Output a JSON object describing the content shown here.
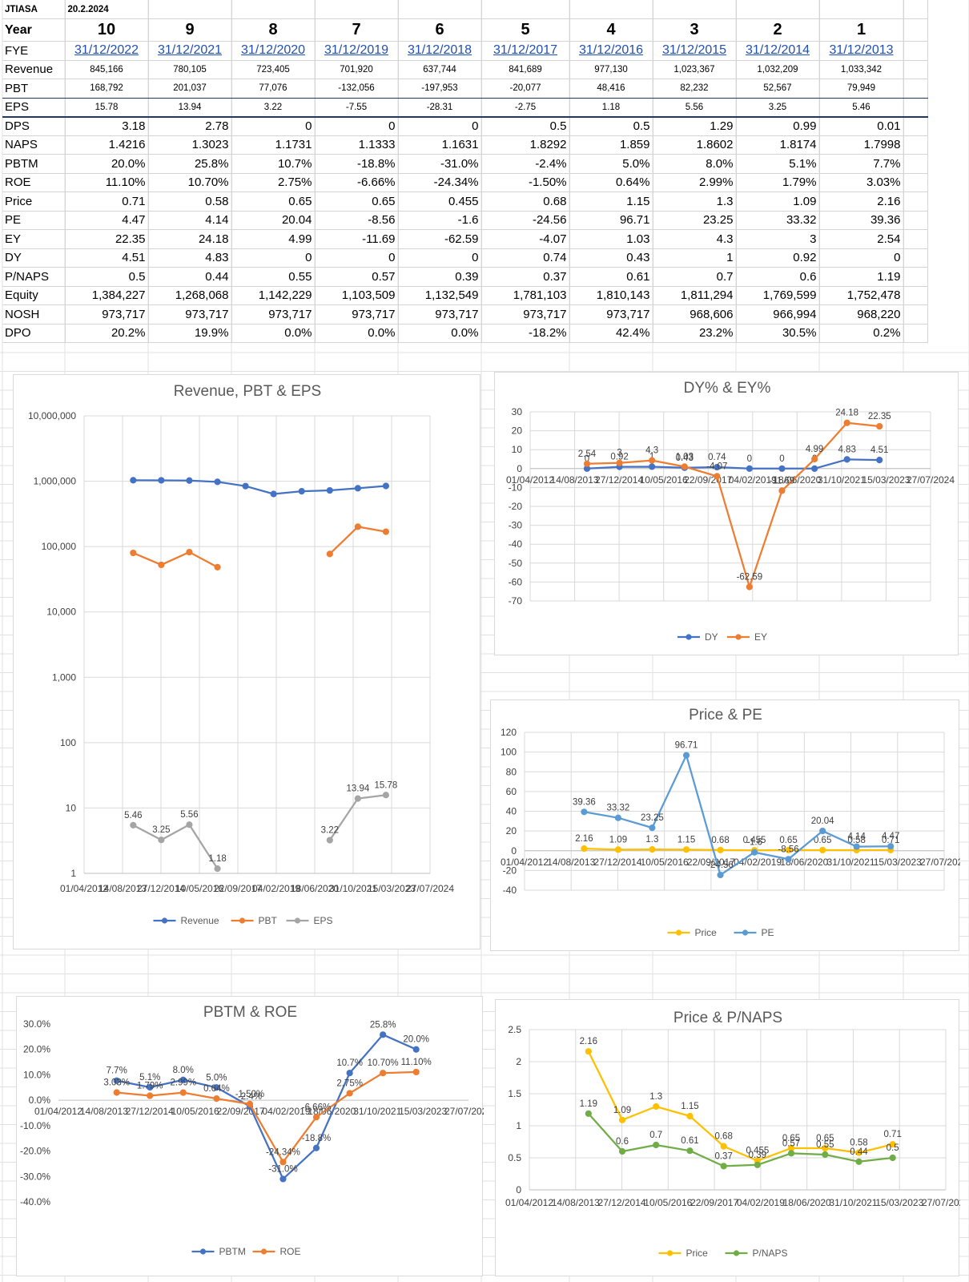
{
  "sheet": {
    "ticker": "JTIASA",
    "date": "20.2.2024",
    "year_label": "Year",
    "years": [
      "10",
      "9",
      "8",
      "7",
      "6",
      "5",
      "4",
      "3",
      "2",
      "1"
    ],
    "rows": [
      {
        "label": "FYE",
        "kind": "link",
        "values": [
          "31/12/2022",
          "31/12/2021",
          "31/12/2020",
          "31/12/2019",
          "31/12/2018",
          "31/12/2017",
          "31/12/2016",
          "31/12/2015",
          "31/12/2014",
          "31/12/2013"
        ]
      },
      {
        "label": "Revenue",
        "kind": "small",
        "values": [
          "845,166",
          "780,105",
          "723,405",
          "701,920",
          "637,744",
          "841,689",
          "977,130",
          "1,023,367",
          "1,032,209",
          "1,033,342"
        ]
      },
      {
        "label": "PBT",
        "kind": "small",
        "values": [
          "168,792",
          "201,037",
          "77,076",
          "-132,056",
          "-197,953",
          "-20,077",
          "48,416",
          "82,232",
          "52,567",
          "79,949"
        ]
      },
      {
        "label": "EPS",
        "kind": "small",
        "values": [
          "15.78",
          "13.94",
          "3.22",
          "-7.55",
          "-28.31",
          "-2.75",
          "1.18",
          "5.56",
          "3.25",
          "5.46"
        ]
      },
      {
        "label": "DPS",
        "kind": "num",
        "values": [
          "3.18",
          "2.78",
          "0",
          "0",
          "0",
          "0.5",
          "0.5",
          "1.29",
          "0.99",
          "0.01"
        ]
      },
      {
        "label": "NAPS",
        "kind": "num",
        "values": [
          "1.4216",
          "1.3023",
          "1.1731",
          "1.1333",
          "1.1631",
          "1.8292",
          "1.859",
          "1.8602",
          "1.8174",
          "1.7998"
        ]
      },
      {
        "label": "PBTM",
        "kind": "num",
        "values": [
          "20.0%",
          "25.8%",
          "10.7%",
          "-18.8%",
          "-31.0%",
          "-2.4%",
          "5.0%",
          "8.0%",
          "5.1%",
          "7.7%"
        ]
      },
      {
        "label": "ROE",
        "kind": "num",
        "values": [
          "11.10%",
          "10.70%",
          "2.75%",
          "-6.66%",
          "-24.34%",
          "-1.50%",
          "0.64%",
          "2.99%",
          "1.79%",
          "3.03%"
        ]
      },
      {
        "label": "Price",
        "kind": "num",
        "values": [
          "0.71",
          "0.58",
          "0.65",
          "0.65",
          "0.455",
          "0.68",
          "1.15",
          "1.3",
          "1.09",
          "2.16"
        ]
      },
      {
        "label": "PE",
        "kind": "num",
        "values": [
          "4.47",
          "4.14",
          "20.04",
          "-8.56",
          "-1.6",
          "-24.56",
          "96.71",
          "23.25",
          "33.32",
          "39.36"
        ]
      },
      {
        "label": "EY",
        "kind": "num",
        "values": [
          "22.35",
          "24.18",
          "4.99",
          "-11.69",
          "-62.59",
          "-4.07",
          "1.03",
          "4.3",
          "3",
          "2.54"
        ]
      },
      {
        "label": "DY",
        "kind": "num",
        "values": [
          "4.51",
          "4.83",
          "0",
          "0",
          "0",
          "0.74",
          "0.43",
          "1",
          "0.92",
          "0"
        ]
      },
      {
        "label": "P/NAPS",
        "kind": "num",
        "values": [
          "0.5",
          "0.44",
          "0.55",
          "0.57",
          "0.39",
          "0.37",
          "0.61",
          "0.7",
          "0.6",
          "1.19"
        ]
      },
      {
        "label": "Equity",
        "kind": "num",
        "values": [
          "1,384,227",
          "1,268,068",
          "1,142,229",
          "1,103,509",
          "1,132,549",
          "1,781,103",
          "1,810,143",
          "1,811,294",
          "1,769,599",
          "1,752,478"
        ]
      },
      {
        "label": "NOSH",
        "kind": "num",
        "values": [
          "973,717",
          "973,717",
          "973,717",
          "973,717",
          "973,717",
          "973,717",
          "973,717",
          "968,606",
          "966,994",
          "968,220"
        ]
      },
      {
        "label": "DPO",
        "kind": "num",
        "values": [
          "20.2%",
          "19.9%",
          "0.0%",
          "0.0%",
          "0.0%",
          "-18.2%",
          "42.4%",
          "23.2%",
          "30.5%",
          "0.2%"
        ]
      }
    ]
  },
  "x_axis_dates": [
    "01/04/2012",
    "14/08/2013",
    "27/12/2014",
    "10/05/2016",
    "22/09/2017",
    "04/02/2019",
    "18/06/2020",
    "31/10/2021",
    "15/03/2023",
    "27/07/2024"
  ],
  "x_axis_range": [
    "01/04/2012",
    "27/07/2024"
  ],
  "point_dates": [
    "31/12/2013",
    "31/12/2014",
    "31/12/2015",
    "31/12/2016",
    "31/12/2017",
    "31/12/2018",
    "31/12/2019",
    "31/12/2020",
    "31/12/2021",
    "31/12/2022"
  ],
  "chart_data": [
    {
      "id": "rev",
      "type": "line",
      "title": "Revenue, PBT & EPS",
      "yscale": "log",
      "ylim": [
        1,
        10000000
      ],
      "y_ticks": [
        "1",
        "10",
        "100",
        "1,000",
        "10,000",
        "100,000",
        "1,000,000",
        "10,000,000"
      ],
      "legend_position": "bottom",
      "grid": true,
      "series": [
        {
          "name": "Revenue",
          "color": "#4472c4",
          "values": [
            1033342,
            1032209,
            1023367,
            977130,
            841689,
            637744,
            701920,
            723405,
            780105,
            845166
          ],
          "show_labels": false
        },
        {
          "name": "PBT",
          "color": "#ed7d31",
          "values": [
            79949,
            52567,
            82232,
            48416,
            null,
            null,
            null,
            77076,
            201037,
            168792
          ],
          "show_labels": false
        },
        {
          "name": "EPS",
          "color": "#a5a5a5",
          "values": [
            5.46,
            3.25,
            5.56,
            1.18,
            null,
            null,
            null,
            3.22,
            13.94,
            15.78
          ],
          "show_labels": true
        }
      ]
    },
    {
      "id": "dyey",
      "type": "line",
      "title": "DY% & EY%",
      "yscale": "linear",
      "ylim": [
        -70,
        30
      ],
      "y_ticks": [
        "30",
        "20",
        "10",
        "0",
        "-10",
        "-20",
        "-30",
        "-40",
        "-50",
        "-60",
        "-70"
      ],
      "legend_position": "bottom",
      "grid": true,
      "series": [
        {
          "name": "DY",
          "color": "#4472c4",
          "values": [
            0,
            0.92,
            1,
            0.43,
            0.74,
            0,
            0,
            0,
            4.83,
            4.51
          ],
          "show_labels": true
        },
        {
          "name": "EY",
          "color": "#ed7d31",
          "values": [
            2.54,
            3,
            4.3,
            1.03,
            -4.07,
            -62.59,
            -11.69,
            4.99,
            24.18,
            22.35
          ],
          "show_labels": true
        }
      ]
    },
    {
      "id": "pricepe",
      "type": "line",
      "title": "Price & PE",
      "yscale": "linear",
      "ylim": [
        -40,
        120
      ],
      "y_ticks": [
        "120",
        "100",
        "80",
        "60",
        "40",
        "20",
        "0",
        "-20",
        "-40"
      ],
      "legend_position": "bottom",
      "grid": true,
      "series": [
        {
          "name": "Price",
          "color": "#ffc000",
          "values": [
            2.16,
            1.09,
            1.3,
            1.15,
            0.68,
            0.455,
            0.65,
            0.65,
            0.58,
            0.71
          ],
          "show_labels": true
        },
        {
          "name": "PE",
          "color": "#5b9bd5",
          "values": [
            39.36,
            33.32,
            23.25,
            96.71,
            -24.56,
            -1.6,
            -8.56,
            20.04,
            4.14,
            4.47
          ],
          "show_labels": true
        }
      ]
    },
    {
      "id": "pbtm",
      "type": "line",
      "title": "PBTM & ROE",
      "yscale": "linear",
      "ylim": [
        -40,
        30
      ],
      "y_ticks": [
        "30.0%",
        "20.0%",
        "10.0%",
        "0.0%",
        "-10.0%",
        "-20.0%",
        "-30.0%",
        "-40.0%"
      ],
      "legend_position": "bottom",
      "grid": false,
      "series": [
        {
          "name": "PBTM",
          "color": "#4472c4",
          "values": [
            7.7,
            5.1,
            8.0,
            5.0,
            -2.4,
            -31.0,
            -18.8,
            10.7,
            25.8,
            20.0
          ],
          "labels": [
            "7.7%",
            "5.1%",
            "8.0%",
            "5.0%",
            "-2.4%",
            "-31.0%",
            "-18.8%",
            "10.7%",
            "25.8%",
            "20.0%"
          ],
          "show_labels": true
        },
        {
          "name": "ROE",
          "color": "#ed7d31",
          "values": [
            3.03,
            1.79,
            2.99,
            0.64,
            -1.5,
            -24.34,
            -6.66,
            2.75,
            10.7,
            11.1
          ],
          "labels": [
            "3.03%",
            "1.79%",
            "2.99%",
            "0.64%",
            "-1.50%",
            "-24.34%",
            "-6.66%",
            "2.75%",
            "10.70%",
            "11.10%"
          ],
          "show_labels": true
        }
      ]
    },
    {
      "id": "pnaps",
      "type": "line",
      "title": "Price & P/NAPS",
      "yscale": "linear",
      "ylim": [
        0,
        2.5
      ],
      "y_ticks": [
        "2.5",
        "2",
        "1.5",
        "1",
        "0.5",
        "0"
      ],
      "legend_position": "bottom",
      "grid": true,
      "series": [
        {
          "name": "Price",
          "color": "#ffc000",
          "values": [
            2.16,
            1.09,
            1.3,
            1.15,
            0.68,
            0.455,
            0.65,
            0.65,
            0.58,
            0.71
          ],
          "show_labels": true
        },
        {
          "name": "P/NAPS",
          "color": "#70ad47",
          "values": [
            1.19,
            0.6,
            0.7,
            0.61,
            0.37,
            0.39,
            0.57,
            0.55,
            0.44,
            0.5
          ],
          "show_labels": true
        }
      ]
    }
  ]
}
